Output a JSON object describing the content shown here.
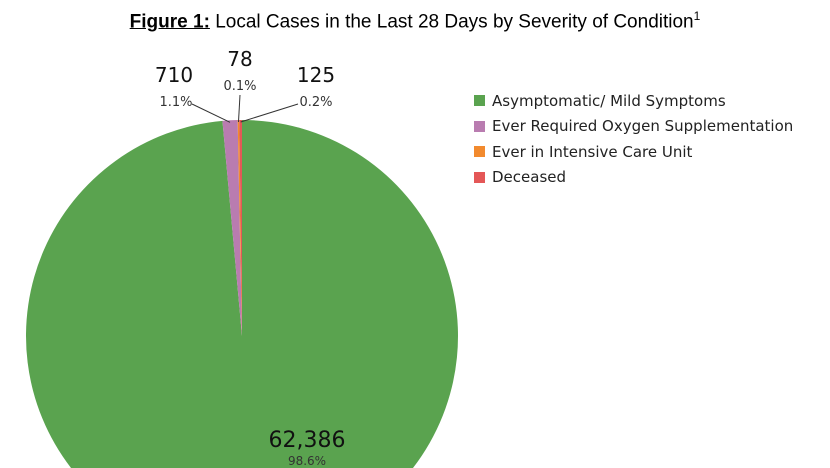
{
  "chart_data": {
    "type": "pie",
    "title_prefix": "Figure 1:",
    "title": "Local Cases in the Last 28 Days by Severity of Condition",
    "title_sup": "1",
    "legend_placement": "right",
    "slices": [
      {
        "label": "Asymptomatic/ Mild Symptoms",
        "value": 62386,
        "value_label": "62,386",
        "pct_label": "98.6%",
        "color": "#5aa34f"
      },
      {
        "label": "Ever Required Oxygen Supplementation",
        "value": 710,
        "value_label": "710",
        "pct_label": "1.1%",
        "color": "#b97cb0"
      },
      {
        "label": "Ever in Intensive Care Unit",
        "value": 78,
        "value_label": "78",
        "pct_label": "0.1%",
        "color": "#f28a2e"
      },
      {
        "label": "Deceased",
        "value": 125,
        "value_label": "125",
        "pct_label": "0.2%",
        "color": "#e45757"
      }
    ]
  }
}
